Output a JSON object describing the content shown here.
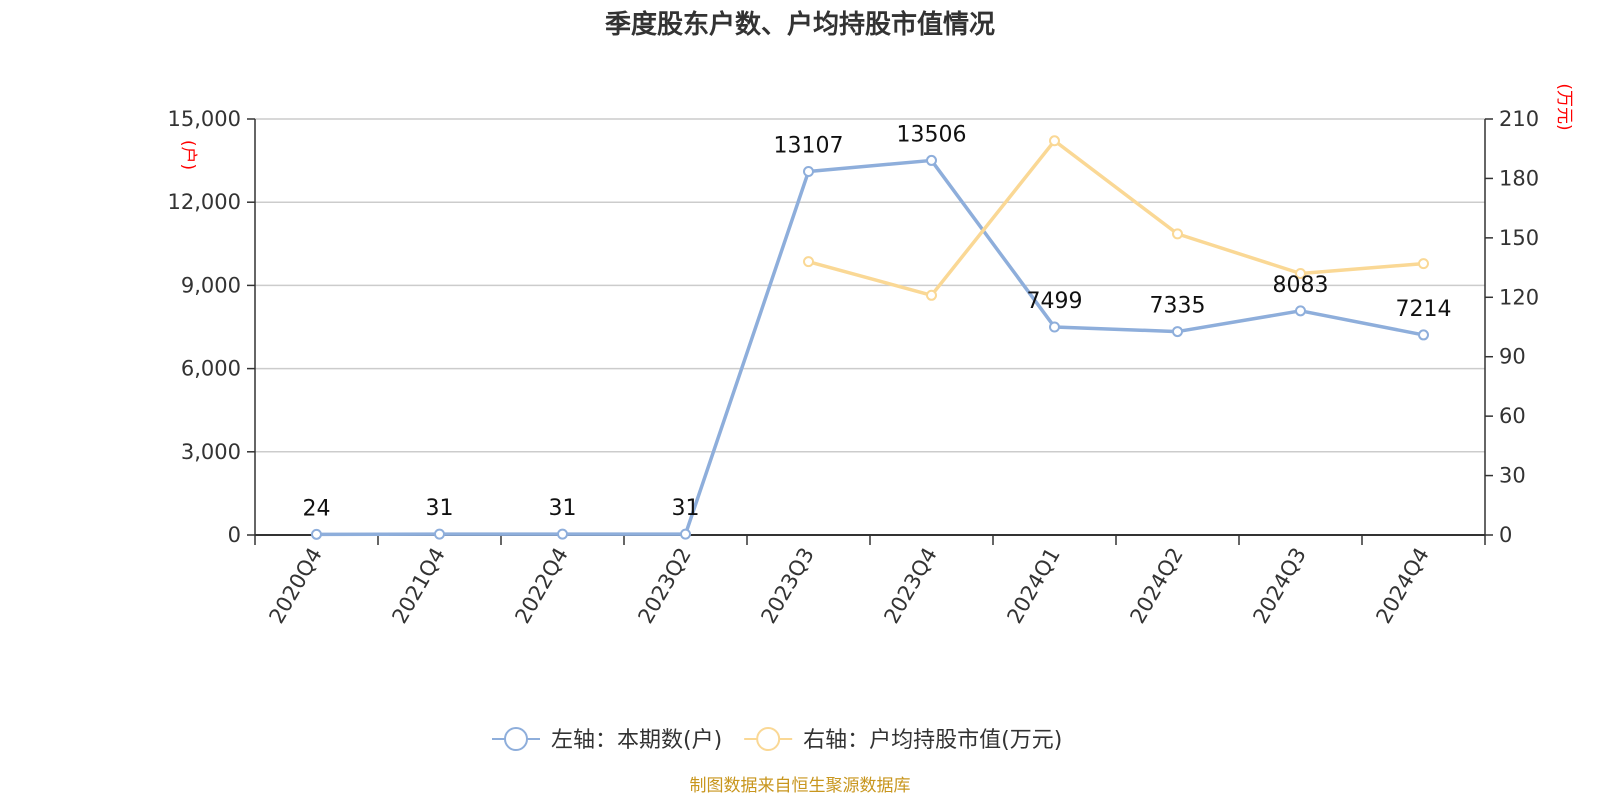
{
  "chart_data": {
    "type": "line",
    "title": "季度股东户数、户均持股市值情况",
    "categories": [
      "2020Q4",
      "2021Q4",
      "2022Q4",
      "2023Q2",
      "2023Q3",
      "2023Q4",
      "2024Q1",
      "2024Q2",
      "2024Q3",
      "2024Q4"
    ],
    "left_axis": {
      "unit": "(户)",
      "ylim": [
        0,
        15000
      ],
      "ticks": [
        0,
        3000,
        6000,
        9000,
        12000,
        15000
      ],
      "tick_labels": [
        "0",
        "3,000",
        "6,000",
        "9,000",
        "12,000",
        "15,000"
      ]
    },
    "right_axis": {
      "unit": "(万元)",
      "ylim": [
        0,
        210
      ],
      "ticks": [
        0,
        30,
        60,
        90,
        120,
        150,
        180,
        210
      ],
      "tick_labels": [
        "0",
        "30",
        "60",
        "90",
        "120",
        "150",
        "180",
        "210"
      ]
    },
    "series": [
      {
        "name": "左轴：本期数(户)",
        "axis": "left",
        "color": "#8eaedb",
        "values": [
          24,
          31,
          31,
          31,
          13107,
          13506,
          7499,
          7335,
          8083,
          7214
        ],
        "labels": [
          "24",
          "31",
          "31",
          "31",
          "13107",
          "13506",
          "7499",
          "7335",
          "8083",
          "7214"
        ]
      },
      {
        "name": "右轴：户均持股市值(万元)",
        "axis": "right",
        "color": "#fad895",
        "values": [
          null,
          null,
          null,
          null,
          138,
          121,
          199,
          152,
          132,
          137
        ]
      }
    ],
    "legend_position": "bottom",
    "grid": true
  },
  "source": "制图数据来自恒生聚源数据库"
}
